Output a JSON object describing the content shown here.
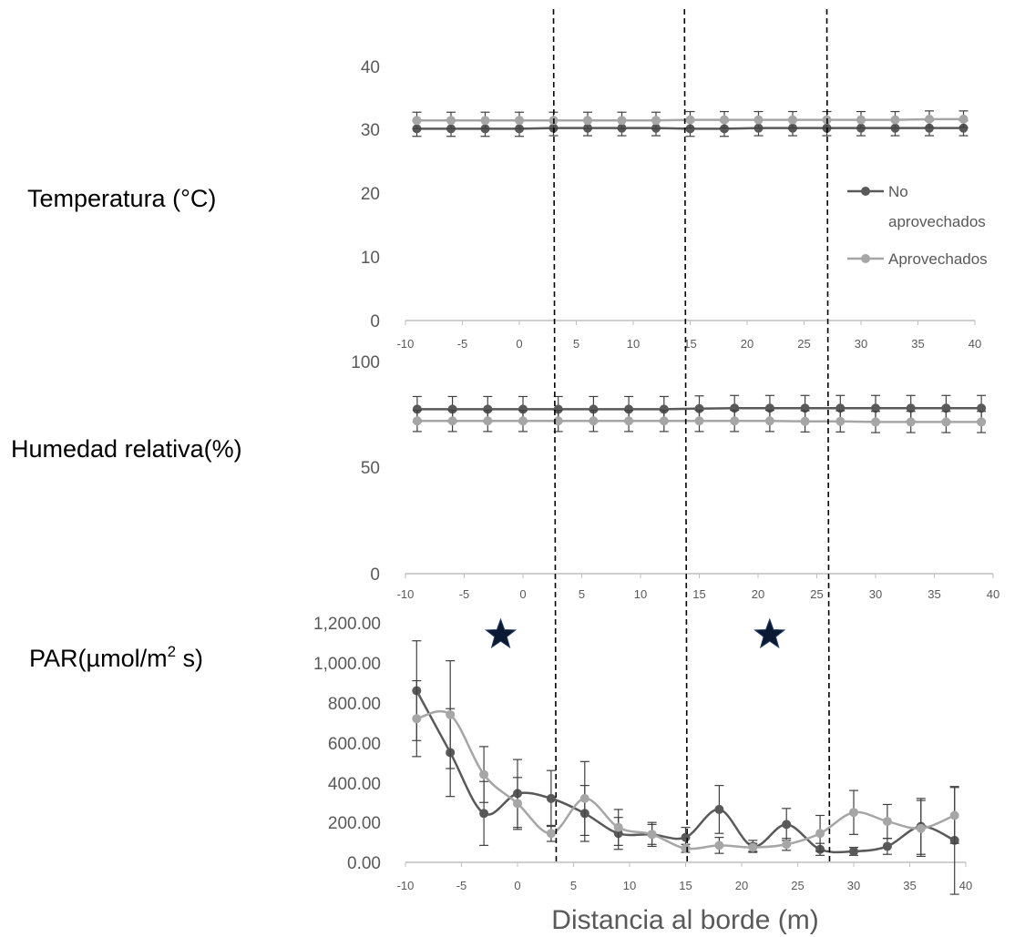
{
  "chart_data": [
    {
      "type": "line",
      "ylabel": "Temperatura (°C)",
      "ylim": [
        0,
        40
      ],
      "yticks": [
        "0",
        "10",
        "20",
        "30",
        "40"
      ],
      "xlim": [
        -10,
        40
      ],
      "xticks": [
        "-10",
        "-5",
        "0",
        "5",
        "10",
        "15",
        "20",
        "25",
        "30",
        "35",
        "40"
      ],
      "x": [
        -9,
        -6,
        -3,
        0,
        3,
        6,
        9,
        12,
        15,
        18,
        21,
        24,
        27,
        30,
        33,
        36,
        39
      ],
      "series": [
        {
          "name": "No aprovechados",
          "color": "#595959",
          "values": [
            30.2,
            30.2,
            30.2,
            30.2,
            30.3,
            30.3,
            30.3,
            30.3,
            30.2,
            30.2,
            30.3,
            30.3,
            30.3,
            30.3,
            30.3,
            30.3,
            30.3
          ],
          "errors": [
            1.2,
            1.2,
            1.2,
            1.2,
            1.2,
            1.2,
            1.2,
            1.2,
            1.2,
            1.2,
            1.2,
            1.2,
            1.2,
            1.2,
            1.2,
            1.2,
            1.2
          ]
        },
        {
          "name": "Aprovechados",
          "color": "#a6a6a6",
          "values": [
            31.5,
            31.5,
            31.5,
            31.5,
            31.5,
            31.5,
            31.5,
            31.5,
            31.6,
            31.6,
            31.6,
            31.6,
            31.6,
            31.6,
            31.6,
            31.7,
            31.7
          ],
          "errors": [
            1.3,
            1.3,
            1.3,
            1.3,
            1.3,
            1.3,
            1.3,
            1.3,
            1.3,
            1.3,
            1.3,
            1.3,
            1.3,
            1.3,
            1.3,
            1.3,
            1.3
          ]
        }
      ],
      "legend": "right",
      "grid": false
    },
    {
      "type": "line",
      "ylabel": "Humedad relativa(%)",
      "ylim": [
        0,
        100
      ],
      "yticks": [
        "0",
        "50",
        "100"
      ],
      "xlim": [
        -10,
        40
      ],
      "xticks": [
        "-10",
        "-5",
        "0",
        "5",
        "10",
        "15",
        "20",
        "25",
        "30",
        "35",
        "40"
      ],
      "x": [
        -9,
        -6,
        -3,
        0,
        3,
        6,
        9,
        12,
        15,
        18,
        21,
        24,
        27,
        30,
        33,
        36,
        39
      ],
      "series": [
        {
          "name": "No aprovechados",
          "color": "#595959",
          "values": [
            77.5,
            77.5,
            77.5,
            77.5,
            77.5,
            77.5,
            77.5,
            77.5,
            77.8,
            78,
            78,
            78,
            78,
            78,
            78,
            78,
            78
          ],
          "errors": [
            6,
            6,
            6,
            6,
            6,
            6,
            6,
            6,
            6,
            6,
            6,
            6,
            6,
            6,
            6,
            6,
            6
          ]
        },
        {
          "name": "Aprovechados",
          "color": "#a6a6a6",
          "values": [
            72,
            72,
            72,
            72,
            72,
            72,
            72,
            72,
            72,
            72,
            72,
            71.8,
            71.8,
            71.5,
            71.5,
            71.5,
            71.5
          ],
          "errors": [
            5,
            5,
            5,
            5,
            5,
            5,
            5,
            5,
            5,
            5,
            5,
            5,
            5,
            5,
            5,
            5,
            5
          ]
        }
      ],
      "grid": false
    },
    {
      "type": "line",
      "ylabel_main": "PAR(",
      "ylabel_mu": "µ",
      "ylabel_unit": "mol/m",
      "ylabel_sup": "2",
      "ylabel_tail": " s)",
      "ylim": [
        0,
        1200
      ],
      "yticks": [
        "0.00",
        "200.00",
        "400.00",
        "600.00",
        "800.00",
        "1,000.00",
        "1,200.00"
      ],
      "xlim": [
        -10,
        40
      ],
      "xticks": [
        "-10",
        "-5",
        "0",
        "5",
        "10",
        "15",
        "20",
        "25",
        "30",
        "35",
        "40"
      ],
      "x": [
        -9,
        -6,
        -3,
        0,
        3,
        6,
        9,
        12,
        15,
        18,
        21,
        24,
        27,
        30,
        33,
        36,
        39
      ],
      "xlabel": "Distancia al borde (m)",
      "series": [
        {
          "name": "No aprovechados",
          "color": "#595959",
          "values": [
            860,
            550,
            245,
            345,
            320,
            245,
            145,
            140,
            125,
            265,
            80,
            190,
            65,
            55,
            80,
            180,
            110
          ],
          "errors": [
            250,
            220,
            160,
            170,
            140,
            140,
            80,
            60,
            50,
            120,
            30,
            80,
            30,
            20,
            40,
            140,
            270
          ]
        },
        {
          "name": "Aprovechados",
          "color": "#a6a6a6",
          "values": [
            720,
            740,
            440,
            295,
            145,
            320,
            175,
            140,
            70,
            85,
            75,
            90,
            145,
            250,
            205,
            170,
            235
          ],
          "errors": [
            190,
            270,
            140,
            130,
            40,
            185,
            90,
            50,
            20,
            40,
            20,
            30,
            90,
            110,
            85,
            140,
            140
          ]
        }
      ],
      "annotations": [
        {
          "type": "star",
          "x": -1.5,
          "y": 1140
        },
        {
          "type": "star",
          "x": 22.5,
          "y": 1140
        }
      ],
      "grid": false
    }
  ],
  "legend": {
    "items": [
      {
        "label_line1": "No",
        "label_line2": "aprovechados",
        "color": "#595959"
      },
      {
        "label": "Aprovechados",
        "color": "#a6a6a6"
      }
    ]
  },
  "boundary_lines_x": [
    3,
    14.5,
    27
  ]
}
